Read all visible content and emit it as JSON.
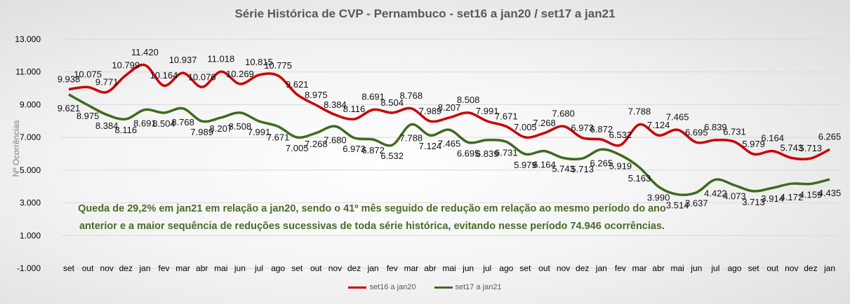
{
  "chart_data": {
    "type": "line",
    "title": "Série Histórica de CVP - Pernambuco - set16 a jan20 /  set17 a jan21",
    "ylabel": "Nº Ocorrências",
    "xlabel": "",
    "ylim": [
      -1000,
      13000
    ],
    "yticks": [
      "-1.000",
      "1.000",
      "3.000",
      "5.000",
      "7.000",
      "9.000",
      "11.000",
      "13.000"
    ],
    "ytick_values": [
      -1000,
      1000,
      3000,
      5000,
      7000,
      9000,
      11000,
      13000
    ],
    "grid": true,
    "legend": "bottom",
    "categories": [
      "set",
      "out",
      "nov",
      "dez",
      "jan",
      "fev",
      "mar",
      "abr",
      "mai",
      "jun",
      "jul",
      "ago",
      "set",
      "out",
      "nov",
      "dez",
      "jan",
      "fev",
      "mar",
      "abr",
      "mai",
      "jun",
      "jul",
      "ago",
      "set",
      "out",
      "nov",
      "dez",
      "jan",
      "fev",
      "mar",
      "abr",
      "mai",
      "jun",
      "jul",
      "ago",
      "set",
      "out",
      "nov",
      "dez",
      "jan"
    ],
    "series": [
      {
        "name": "set16 a jan20",
        "color": "#cc0000",
        "values": [
          9938,
          10075,
          9771,
          10799,
          11420,
          10164,
          10937,
          10076,
          11018,
          10269,
          10815,
          10775,
          9621,
          8975,
          8384,
          8116,
          8691,
          8504,
          8768,
          7989,
          8207,
          8508,
          7991,
          7671,
          7005,
          7268,
          7680,
          6973,
          6872,
          6532,
          7788,
          7124,
          7465,
          6695,
          6839,
          6731,
          5979,
          6164,
          5743,
          5713,
          6265
        ],
        "labels": [
          "9.938",
          "10.075",
          "9.771",
          "10.799",
          "11.420",
          "10.164",
          "10.937",
          "10.076",
          "11.018",
          "10.269",
          "10.815",
          "10.775",
          "9.621",
          "8.975",
          "8.384",
          "8.116",
          "8.691",
          "8.504",
          "8.768",
          "7.989",
          "8.207",
          "8.508",
          "7.991",
          "7.671",
          "7.005",
          "7.268",
          "7.680",
          "6.973",
          "6.872",
          "6.532",
          "7.788",
          "7.124",
          "7.465",
          "6.695",
          "6.839",
          "6.731",
          "5.979",
          "6.164",
          "5.743",
          "5.713",
          "6.265"
        ]
      },
      {
        "name": "set17 a jan21",
        "color": "#3f6a1f",
        "values": [
          9621,
          8975,
          8384,
          8116,
          8691,
          8504,
          8768,
          7989,
          8207,
          8508,
          7991,
          7671,
          7005,
          7268,
          7680,
          6973,
          6872,
          6532,
          7788,
          7124,
          7465,
          6695,
          6839,
          6731,
          5979,
          6164,
          5743,
          5713,
          6265,
          5919,
          5163,
          3990,
          3514,
          3637,
          4422,
          4073,
          3713,
          3914,
          4172,
          4159,
          4435
        ],
        "labels": [
          "9.621",
          "8.975",
          "8.384",
          "8.116",
          "8.691",
          "8.504",
          "8.768",
          "7.989",
          "8.207",
          "8.508",
          "7.991",
          "7.671",
          "7.005",
          "7.268",
          "7.680",
          "6.973",
          "6.872",
          "6.532",
          "7.788",
          "7.124",
          "7.465",
          "6.695",
          "6.839",
          "6.731",
          "5.979",
          "6.164",
          "5.743",
          "5.713",
          "6.265",
          "5.919",
          "5.163",
          "3.990",
          "3.514",
          "3.637",
          "4.422",
          "4.073",
          "3.713",
          "3.914",
          "4.172",
          "4.159",
          "4.435"
        ]
      }
    ],
    "annotation": [
      "Queda de 29,2% em jan21 em relação a jan20, sendo o 41º mês seguido de redução em relação ao mesmo período do ano",
      "anterior e a maior sequência de reduções sucessivas de toda série histórica, evitando nesse período 74.946 ocorrências."
    ]
  }
}
